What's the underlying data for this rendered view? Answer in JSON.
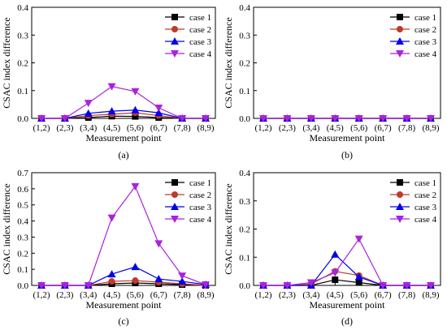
{
  "chart_data": [
    {
      "type": "line",
      "panel_label": "(a)",
      "xlabel": "Measurement point",
      "ylabel": "CSAC index difference",
      "categories": [
        "(1,2)",
        "(2,3)",
        "(3,4)",
        "(4,5)",
        "(5,6)",
        "(6,7)",
        "(7,8)",
        "(8,9)"
      ],
      "ylim": [
        0,
        0.4
      ],
      "yticks": [
        "0.0",
        "0.1",
        "0.2",
        "0.3",
        "0.4"
      ],
      "legend_position": "top-right",
      "series": [
        {
          "name": "case 1",
          "color": "#000000",
          "marker": "square",
          "values": [
            0,
            0,
            0.003,
            0.008,
            0.007,
            0.003,
            0,
            0
          ]
        },
        {
          "name": "case 2",
          "color": "#c0392b",
          "marker": "circle",
          "values": [
            0,
            0,
            0.01,
            0.015,
            0.02,
            0.01,
            0,
            0
          ]
        },
        {
          "name": "case 3",
          "color": "#0000ee",
          "marker": "triangle-up",
          "values": [
            0,
            0,
            0.018,
            0.026,
            0.03,
            0.02,
            0,
            0
          ]
        },
        {
          "name": "case 4",
          "color": "#aa22dd",
          "marker": "triangle-down",
          "values": [
            0,
            0,
            0.055,
            0.115,
            0.097,
            0.038,
            0,
            0
          ]
        }
      ]
    },
    {
      "type": "line",
      "panel_label": "(b)",
      "xlabel": "Measurement point",
      "ylabel": "CSAC index difference",
      "categories": [
        "(1,2)",
        "(2,3)",
        "(3,4)",
        "(4,5)",
        "(5,6)",
        "(6,7)",
        "(7,8)",
        "(8,9)"
      ],
      "ylim": [
        0,
        0.4
      ],
      "yticks": [
        "0.0",
        "0.1",
        "0.2",
        "0.3",
        "0.4"
      ],
      "legend_position": "top-right",
      "series": [
        {
          "name": "case 1",
          "color": "#000000",
          "marker": "square",
          "values": [
            0,
            0,
            0,
            0,
            0,
            0,
            0,
            0
          ]
        },
        {
          "name": "case 2",
          "color": "#c0392b",
          "marker": "circle",
          "values": [
            0,
            0,
            0,
            0,
            0,
            0,
            0,
            0
          ]
        },
        {
          "name": "case 3",
          "color": "#0000ee",
          "marker": "triangle-up",
          "values": [
            0,
            0,
            0,
            0,
            0,
            0,
            0,
            0
          ]
        },
        {
          "name": "case 4",
          "color": "#aa22dd",
          "marker": "triangle-down",
          "values": [
            0,
            0,
            0,
            0,
            0,
            0,
            0,
            0
          ]
        }
      ]
    },
    {
      "type": "line",
      "panel_label": "(c)",
      "xlabel": "Measurement point",
      "ylabel": "CSAC index difference",
      "categories": [
        "(1,2)",
        "(2,3)",
        "(3,4)",
        "(4,5)",
        "(5,6)",
        "(6,7)",
        "(7,8)",
        "(8,9)"
      ],
      "ylim": [
        0,
        0.7
      ],
      "yticks": [
        "0.0",
        "0.1",
        "0.2",
        "0.3",
        "0.4",
        "0.5",
        "0.6",
        "0.7"
      ],
      "legend_position": "top-right",
      "series": [
        {
          "name": "case 1",
          "color": "#000000",
          "marker": "square",
          "values": [
            0,
            0,
            0,
            0.01,
            0.015,
            0.01,
            0.005,
            0
          ]
        },
        {
          "name": "case 2",
          "color": "#c0392b",
          "marker": "circle",
          "values": [
            0,
            0,
            0,
            0.025,
            0.03,
            0.02,
            0.01,
            0
          ]
        },
        {
          "name": "case 3",
          "color": "#0000ee",
          "marker": "triangle-up",
          "values": [
            0,
            0,
            0,
            0.07,
            0.115,
            0.04,
            0.025,
            0.005
          ]
        },
        {
          "name": "case 4",
          "color": "#aa22dd",
          "marker": "triangle-down",
          "values": [
            0,
            0,
            0,
            0.42,
            0.615,
            0.26,
            0.06,
            0.005
          ]
        }
      ]
    },
    {
      "type": "line",
      "panel_label": "(d)",
      "xlabel": "Measurement point",
      "ylabel": "CSAC index difference",
      "categories": [
        "(1,2)",
        "(2,3)",
        "(3,4)",
        "(4,5)",
        "(5,6)",
        "(6,7)",
        "(7,8)",
        "(8,9)"
      ],
      "ylim": [
        0,
        0.4
      ],
      "yticks": [
        "0.0",
        "0.1",
        "0.2",
        "0.3",
        "0.4"
      ],
      "legend_position": "top-right",
      "series": [
        {
          "name": "case 1",
          "color": "#000000",
          "marker": "square",
          "values": [
            0,
            0,
            0,
            0.02,
            0.01,
            0,
            0,
            0
          ]
        },
        {
          "name": "case 2",
          "color": "#c0392b",
          "marker": "circle",
          "values": [
            0,
            0,
            0.005,
            0.05,
            0.035,
            0,
            0,
            0
          ]
        },
        {
          "name": "case 3",
          "color": "#0000ee",
          "marker": "triangle-up",
          "values": [
            0,
            0,
            0,
            0.11,
            0.03,
            0,
            0,
            0
          ]
        },
        {
          "name": "case 4",
          "color": "#aa22dd",
          "marker": "triangle-down",
          "values": [
            0,
            0,
            0.01,
            0.045,
            0.165,
            0,
            0,
            0
          ]
        }
      ]
    }
  ]
}
